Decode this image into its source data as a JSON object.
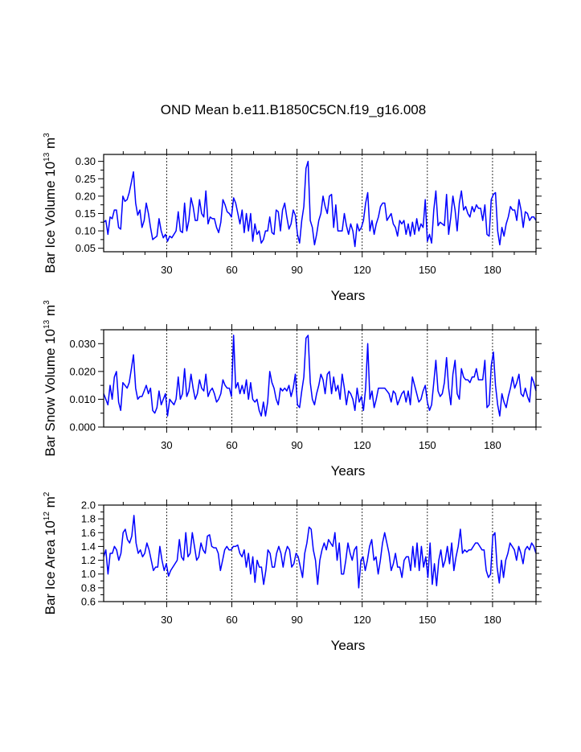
{
  "title": "OND Mean b.e11.B1850C5CN.f19_g16.008",
  "chart_data": [
    {
      "type": "line",
      "ylabel": "Bar Ice Volume",
      "yunit_base": "10",
      "yunit_exp": "13",
      "yunit_unit": "m",
      "yunit_unit_exp": "3",
      "xlabel": "Years",
      "xlim": [
        1,
        200
      ],
      "ylim": [
        0.04,
        0.32
      ],
      "yticks": [
        0.05,
        0.1,
        0.15,
        0.2,
        0.25,
        0.3
      ],
      "ytick_labels": [
        "0.05",
        "0.10",
        "0.15",
        "0.20",
        "0.25",
        "0.30"
      ],
      "xticks": [
        30,
        60,
        90,
        120,
        150,
        180
      ],
      "xtick_labels": [
        "30",
        "60",
        "90",
        "120",
        "150",
        "180"
      ],
      "grid_x": [
        30,
        60,
        90,
        120,
        150,
        180
      ],
      "line_color": "#0000ff",
      "series": [
        {
          "name": "Bar Ice Volume",
          "values": [
            0.125,
            0.13,
            0.09,
            0.14,
            0.135,
            0.16,
            0.16,
            0.11,
            0.105,
            0.2,
            0.185,
            0.19,
            0.21,
            0.24,
            0.27,
            0.18,
            0.145,
            0.16,
            0.11,
            0.13,
            0.18,
            0.15,
            0.11,
            0.075,
            0.08,
            0.085,
            0.135,
            0.1,
            0.08,
            0.09,
            0.07,
            0.085,
            0.08,
            0.09,
            0.1,
            0.155,
            0.1,
            0.095,
            0.18,
            0.1,
            0.13,
            0.195,
            0.17,
            0.13,
            0.13,
            0.19,
            0.15,
            0.14,
            0.215,
            0.12,
            0.14,
            0.135,
            0.135,
            0.11,
            0.095,
            0.125,
            0.19,
            0.175,
            0.155,
            0.15,
            0.14,
            0.195,
            0.18,
            0.15,
            0.12,
            0.16,
            0.095,
            0.15,
            0.1,
            0.15,
            0.07,
            0.12,
            0.09,
            0.1,
            0.065,
            0.075,
            0.1,
            0.1,
            0.14,
            0.095,
            0.09,
            0.16,
            0.155,
            0.1,
            0.16,
            0.18,
            0.14,
            0.105,
            0.12,
            0.16,
            0.145,
            0.09,
            0.065,
            0.13,
            0.17,
            0.28,
            0.3,
            0.13,
            0.11,
            0.06,
            0.09,
            0.13,
            0.15,
            0.2,
            0.17,
            0.15,
            0.2,
            0.205,
            0.11,
            0.175,
            0.1,
            0.1,
            0.1,
            0.15,
            0.115,
            0.09,
            0.12,
            0.1,
            0.055,
            0.12,
            0.1,
            0.11,
            0.13,
            0.18,
            0.21,
            0.1,
            0.13,
            0.09,
            0.12,
            0.14,
            0.17,
            0.18,
            0.18,
            0.13,
            0.14,
            0.15,
            0.12,
            0.11,
            0.085,
            0.13,
            0.12,
            0.13,
            0.09,
            0.12,
            0.085,
            0.125,
            0.09,
            0.135,
            0.1,
            0.12,
            0.11,
            0.19,
            0.07,
            0.09,
            0.065,
            0.16,
            0.215,
            0.115,
            0.125,
            0.12,
            0.115,
            0.205,
            0.09,
            0.14,
            0.2,
            0.16,
            0.1,
            0.18,
            0.215,
            0.16,
            0.17,
            0.15,
            0.14,
            0.17,
            0.155,
            0.175,
            0.165,
            0.165,
            0.13,
            0.175,
            0.09,
            0.085,
            0.19,
            0.205,
            0.21,
            0.1,
            0.06,
            0.11,
            0.085,
            0.12,
            0.14,
            0.17,
            0.16,
            0.16,
            0.13,
            0.19,
            0.16,
            0.11,
            0.155,
            0.15,
            0.13,
            0.14,
            0.14,
            0.13
          ]
        }
      ]
    },
    {
      "type": "line",
      "ylabel": "Bar Snow Volume",
      "yunit_base": "10",
      "yunit_exp": "13",
      "yunit_unit": "m",
      "yunit_unit_exp": "3",
      "xlabel": "Years",
      "xlim": [
        1,
        200
      ],
      "ylim": [
        0.0,
        0.035
      ],
      "yticks": [
        0.0,
        0.01,
        0.02,
        0.03
      ],
      "ytick_labels": [
        "0.000",
        "0.010",
        "0.020",
        "0.030"
      ],
      "xticks": [
        30,
        60,
        90,
        120,
        150,
        180
      ],
      "xtick_labels": [
        "30",
        "60",
        "90",
        "120",
        "150",
        "180"
      ],
      "grid_x": [
        30,
        60,
        90,
        120,
        150,
        180
      ],
      "line_color": "#0000ff",
      "series": [
        {
          "name": "Bar Snow Volume",
          "values": [
            0.012,
            0.01,
            0.008,
            0.015,
            0.01,
            0.018,
            0.02,
            0.009,
            0.006,
            0.016,
            0.015,
            0.014,
            0.016,
            0.021,
            0.026,
            0.014,
            0.01,
            0.011,
            0.011,
            0.013,
            0.015,
            0.012,
            0.014,
            0.006,
            0.005,
            0.007,
            0.013,
            0.008,
            0.01,
            0.012,
            0.004,
            0.01,
            0.009,
            0.008,
            0.01,
            0.018,
            0.01,
            0.012,
            0.021,
            0.011,
            0.013,
            0.019,
            0.014,
            0.01,
            0.012,
            0.017,
            0.014,
            0.013,
            0.019,
            0.011,
            0.013,
            0.014,
            0.012,
            0.009,
            0.01,
            0.012,
            0.017,
            0.015,
            0.014,
            0.014,
            0.011,
            0.033,
            0.014,
            0.016,
            0.012,
            0.015,
            0.012,
            0.017,
            0.01,
            0.016,
            0.01,
            0.009,
            0.01,
            0.006,
            0.004,
            0.009,
            0.004,
            0.009,
            0.02,
            0.016,
            0.014,
            0.01,
            0.008,
            0.014,
            0.013,
            0.014,
            0.013,
            0.015,
            0.011,
            0.014,
            0.019,
            0.008,
            0.007,
            0.013,
            0.018,
            0.032,
            0.033,
            0.016,
            0.01,
            0.008,
            0.012,
            0.015,
            0.019,
            0.017,
            0.012,
            0.019,
            0.02,
            0.012,
            0.018,
            0.013,
            0.015,
            0.01,
            0.019,
            0.014,
            0.008,
            0.013,
            0.012,
            0.01,
            0.006,
            0.014,
            0.009,
            0.011,
            0.006,
            0.014,
            0.03,
            0.01,
            0.013,
            0.007,
            0.01,
            0.014,
            0.014,
            0.014,
            0.014,
            0.013,
            0.012,
            0.009,
            0.013,
            0.012,
            0.008,
            0.01,
            0.012,
            0.013,
            0.009,
            0.013,
            0.008,
            0.018,
            0.015,
            0.012,
            0.009,
            0.01,
            0.013,
            0.015,
            0.009,
            0.006,
            0.008,
            0.016,
            0.024,
            0.013,
            0.011,
            0.012,
            0.016,
            0.025,
            0.014,
            0.008,
            0.019,
            0.024,
            0.012,
            0.01,
            0.021,
            0.018,
            0.017,
            0.017,
            0.016,
            0.018,
            0.018,
            0.021,
            0.017,
            0.017,
            0.017,
            0.024,
            0.007,
            0.008,
            0.022,
            0.027,
            0.015,
            0.008,
            0.004,
            0.012,
            0.009,
            0.007,
            0.011,
            0.014,
            0.018,
            0.014,
            0.016,
            0.019,
            0.012,
            0.011,
            0.014,
            0.011,
            0.009,
            0.018,
            0.016,
            0.013
          ]
        }
      ]
    },
    {
      "type": "line",
      "ylabel": "Bar Ice Area",
      "yunit_base": "10",
      "yunit_exp": "12",
      "yunit_unit": "m",
      "yunit_unit_exp": "2",
      "xlabel": "Years",
      "xlim": [
        1,
        200
      ],
      "ylim": [
        0.6,
        2.0
      ],
      "yticks": [
        0.6,
        0.8,
        1.0,
        1.2,
        1.4,
        1.6,
        1.8,
        2.0
      ],
      "ytick_labels": [
        "0.6",
        "0.8",
        "1.0",
        "1.2",
        "1.4",
        "1.6",
        "1.8",
        "2.0"
      ],
      "xticks": [
        30,
        60,
        90,
        120,
        150,
        180
      ],
      "xtick_labels": [
        "30",
        "60",
        "90",
        "120",
        "150",
        "180"
      ],
      "grid_x": [
        30,
        60,
        90,
        120,
        150,
        180
      ],
      "line_color": "#0000ff",
      "series": [
        {
          "name": "Bar Ice Area",
          "values": [
            1.25,
            1.35,
            1.0,
            1.3,
            1.3,
            1.4,
            1.35,
            1.2,
            1.3,
            1.6,
            1.65,
            1.5,
            1.45,
            1.55,
            1.85,
            1.45,
            1.3,
            1.35,
            1.25,
            1.3,
            1.45,
            1.35,
            1.2,
            1.05,
            1.1,
            1.1,
            1.4,
            1.2,
            1.05,
            1.15,
            0.97,
            1.05,
            1.1,
            1.15,
            1.2,
            1.5,
            1.25,
            1.2,
            1.6,
            1.25,
            1.3,
            1.6,
            1.4,
            1.2,
            1.25,
            1.45,
            1.35,
            1.3,
            1.55,
            1.57,
            1.4,
            1.38,
            1.38,
            1.3,
            1.05,
            1.2,
            1.35,
            1.4,
            1.35,
            1.35,
            1.4,
            1.4,
            1.42,
            1.3,
            1.25,
            1.35,
            1.1,
            1.3,
            1.0,
            1.25,
            0.88,
            1.2,
            1.1,
            1.1,
            0.85,
            1.05,
            1.35,
            1.3,
            1.1,
            1.1,
            1.3,
            1.4,
            1.3,
            1.1,
            1.3,
            1.4,
            1.35,
            1.1,
            1.15,
            1.3,
            1.25,
            1.1,
            0.95,
            1.3,
            1.45,
            1.68,
            1.65,
            1.35,
            1.2,
            0.85,
            1.2,
            1.35,
            1.45,
            1.35,
            1.5,
            1.45,
            1.4,
            1.6,
            1.2,
            1.45,
            1.0,
            1.0,
            1.2,
            1.45,
            1.3,
            1.2,
            1.35,
            1.4,
            0.8,
            1.2,
            1.25,
            1.05,
            1.2,
            1.4,
            1.5,
            1.2,
            1.25,
            1.0,
            1.2,
            1.45,
            1.6,
            1.45,
            1.3,
            1.05,
            1.15,
            1.3,
            1.1,
            1.1,
            0.95,
            1.2,
            1.25,
            1.25,
            1.05,
            1.4,
            1.1,
            1.45,
            1.05,
            1.4,
            1.1,
            1.25,
            0.95,
            1.45,
            0.85,
            1.15,
            0.83,
            1.2,
            1.35,
            1.1,
            1.2,
            1.4,
            1.15,
            1.45,
            1.05,
            1.25,
            1.4,
            1.65,
            1.3,
            1.35,
            1.32,
            1.35,
            1.35,
            1.4,
            1.45,
            1.45,
            1.4,
            1.35,
            1.35,
            1.05,
            0.95,
            1.0,
            1.55,
            1.6,
            1.1,
            0.87,
            1.2,
            0.95,
            1.2,
            1.3,
            1.45,
            1.4,
            1.35,
            1.2,
            1.4,
            1.3,
            1.15,
            1.35,
            1.4,
            1.35,
            1.45,
            1.4,
            1.3
          ]
        }
      ]
    }
  ]
}
